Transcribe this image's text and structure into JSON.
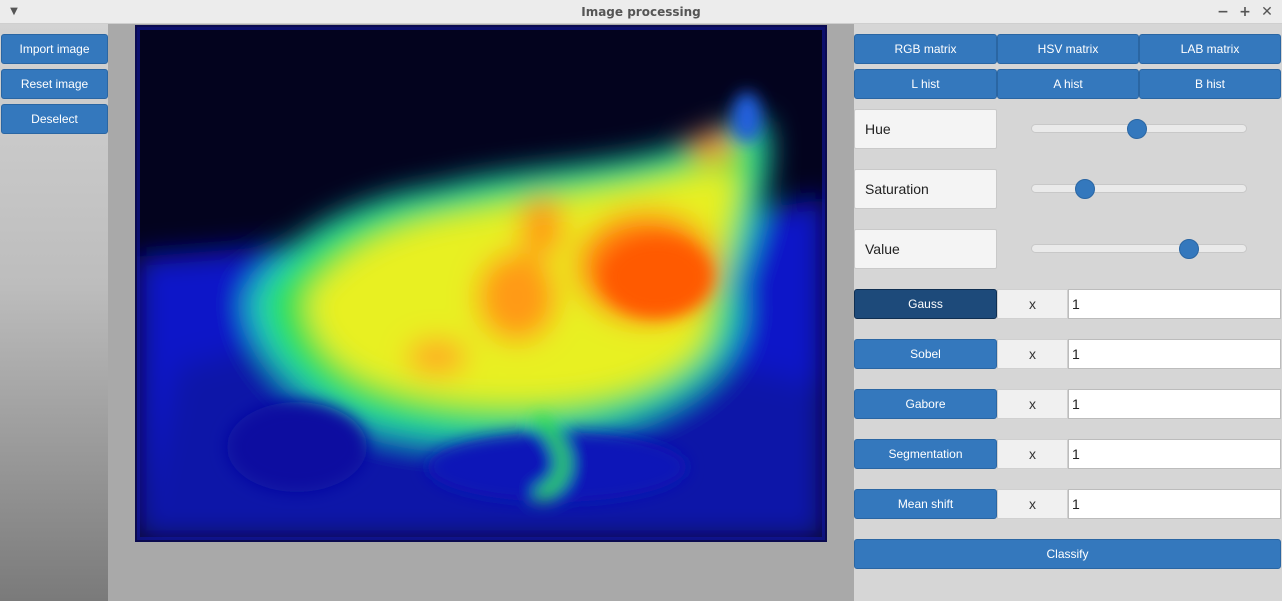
{
  "window": {
    "title": "Image processing"
  },
  "left_panel": {
    "import_label": "Import image",
    "reset_label": "Reset image",
    "deselect_label": "Deselect"
  },
  "matrix_buttons": {
    "rgb": "RGB matrix",
    "hsv": "HSV matrix",
    "lab": "LAB matrix",
    "l_hist": "L hist",
    "a_hist": "A hist",
    "b_hist": "B hist"
  },
  "sliders": {
    "hue": {
      "label": "Hue",
      "value": 0.49
    },
    "saturation": {
      "label": "Saturation",
      "value": 0.25
    },
    "value": {
      "label": "Value",
      "value": 0.73
    }
  },
  "filters": {
    "gauss": {
      "label": "Gauss",
      "x": "x",
      "value": "1"
    },
    "sobel": {
      "label": "Sobel",
      "x": "x",
      "value": "1"
    },
    "gabore": {
      "label": "Gabore",
      "x": "x",
      "value": "1"
    },
    "segmentation": {
      "label": "Segmentation",
      "x": "x",
      "value": "1"
    },
    "mean_shift": {
      "label": "Mean shift",
      "x": "x",
      "value": "1"
    }
  },
  "classify_label": "Classify",
  "colors": {
    "accent": "#3478bd",
    "active": "#1d4a7a"
  }
}
